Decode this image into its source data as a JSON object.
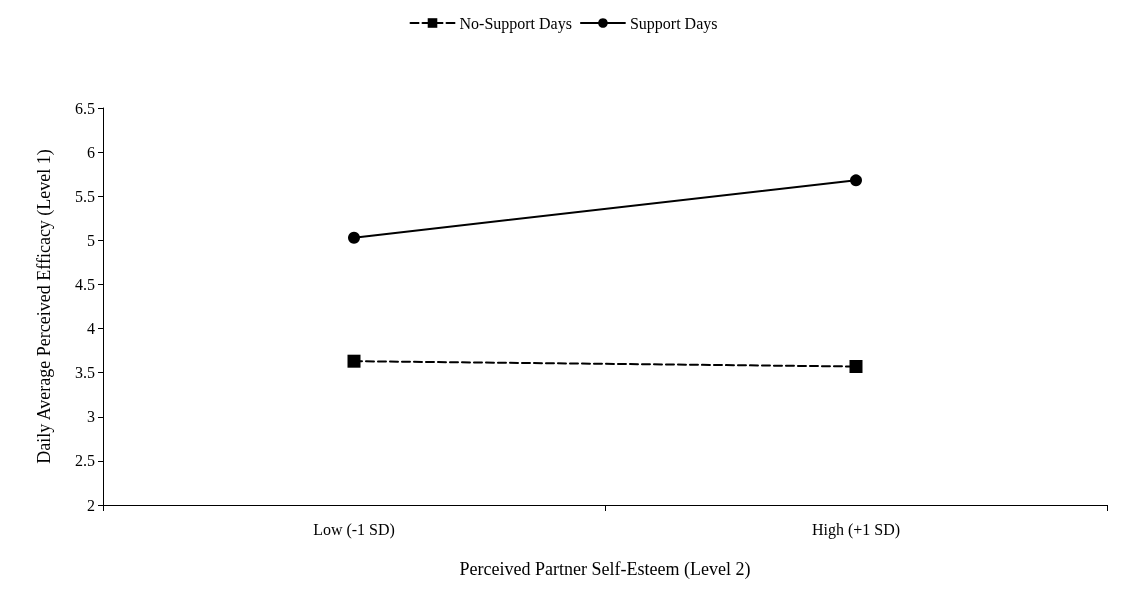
{
  "chart_data": {
    "type": "line",
    "xlabel": "Perceived Partner Self-Esteem (Level 2)",
    "ylabel": "Daily Average Perceived Efficacy (Level 1)",
    "categories": [
      "Low (-1 SD)",
      "High (+1 SD)"
    ],
    "series": [
      {
        "name": "No-Support Days",
        "color": "#000000",
        "values": [
          3.63,
          3.57
        ],
        "marker": "square",
        "line_style": "dashed"
      },
      {
        "name": "Support Days",
        "color": "#000000",
        "values": [
          5.03,
          5.68
        ],
        "marker": "circle",
        "line_style": "solid"
      }
    ],
    "ylim": [
      2,
      6.5
    ],
    "yticks": [
      2,
      2.5,
      3,
      3.5,
      4,
      4.5,
      5,
      5.5,
      6,
      6.5
    ],
    "grid": false,
    "legend": "top"
  }
}
